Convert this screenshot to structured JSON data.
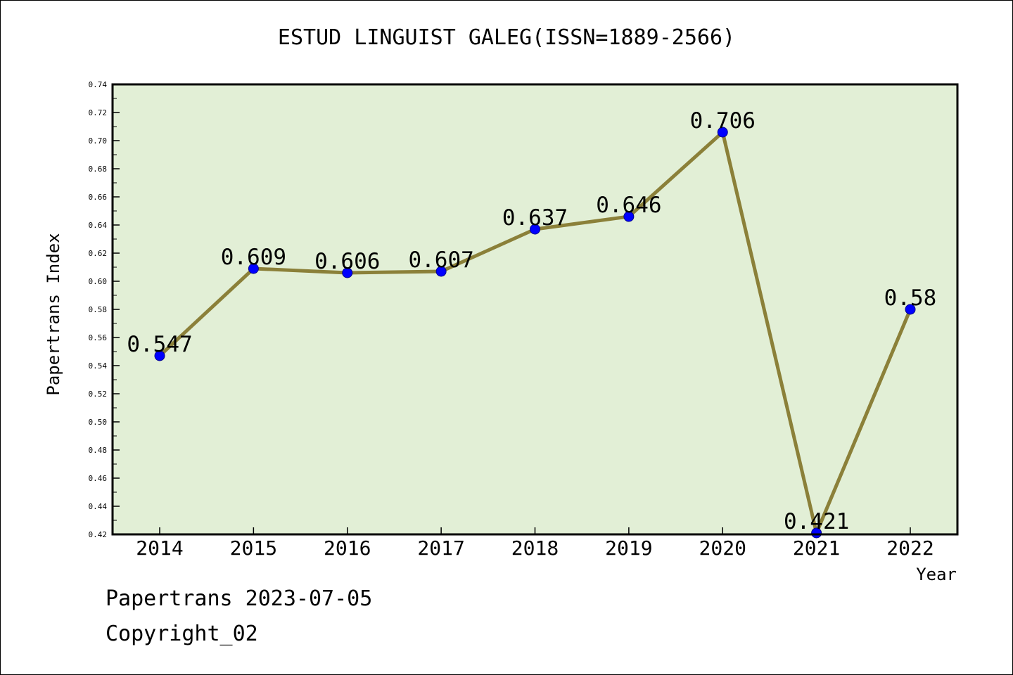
{
  "title": "ESTUD LINGUIST GALEG(ISSN=1889-2566)",
  "footer": {
    "line1": "Papertrans 2023-07-05",
    "line2": "Copyright_02"
  },
  "colors": {
    "plot_background": "#e2efd6",
    "line": "#8b8039",
    "marker": "#0000ff",
    "axis": "#000000"
  },
  "chart_data": {
    "type": "line",
    "title": "ESTUD LINGUIST GALEG(ISSN=1889-2566)",
    "xlabel": "Year",
    "ylabel": "Papertrans Index",
    "categories": [
      "2014",
      "2015",
      "2016",
      "2017",
      "2018",
      "2019",
      "2020",
      "2021",
      "2022"
    ],
    "series": [
      {
        "values": [
          0.547,
          0.609,
          0.606,
          0.607,
          0.637,
          0.646,
          0.706,
          0.421,
          0.58
        ],
        "labels": [
          "0.547",
          "0.609",
          "0.606",
          "0.607",
          "0.637",
          "0.646",
          "0.706",
          "0.421",
          "0.58"
        ]
      }
    ],
    "ylim": [
      0.42,
      0.74
    ],
    "yticks": [
      "0.42",
      "0.44",
      "0.46",
      "0.48",
      "0.50",
      "0.52",
      "0.54",
      "0.56",
      "0.58",
      "0.60",
      "0.62",
      "0.64",
      "0.66",
      "0.68",
      "0.70",
      "0.72",
      "0.74"
    ],
    "grid": false,
    "legend": "none"
  }
}
